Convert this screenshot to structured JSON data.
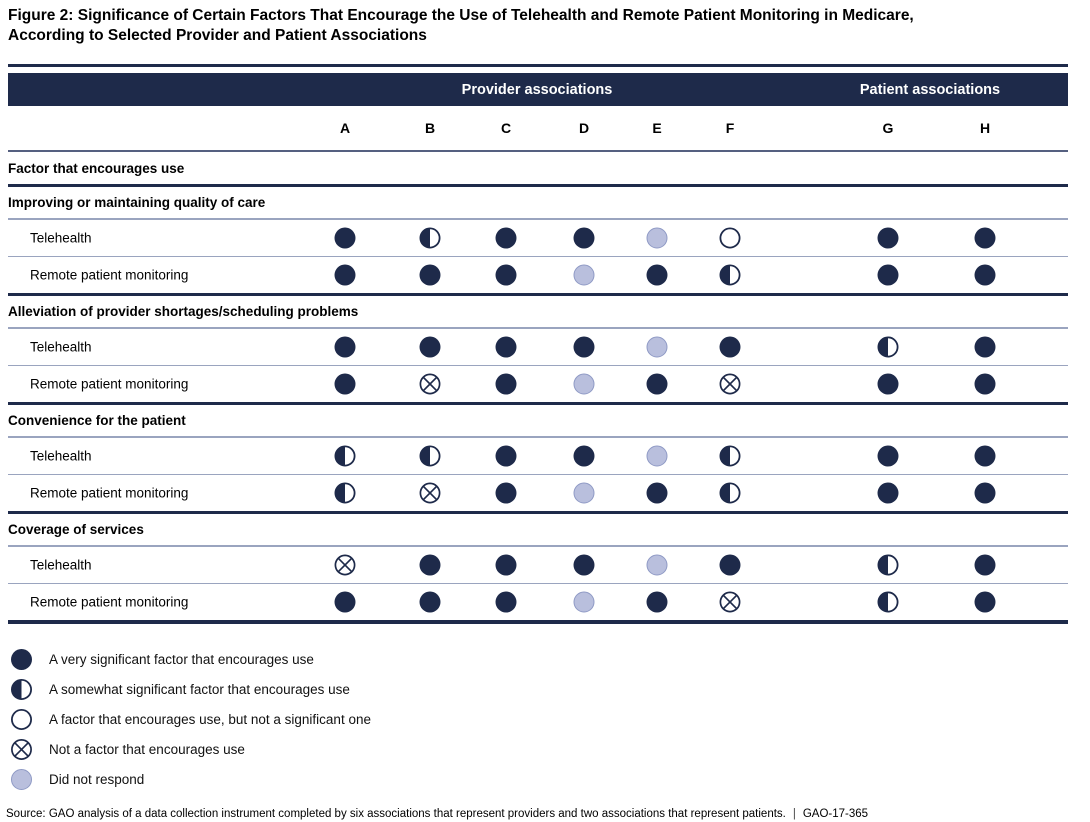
{
  "title": {
    "line1": "Figure 2: Significance of Certain Factors That Encourage the Use of Telehealth and Remote Patient Monitoring in Medicare,",
    "line2": "According to Selected Provider and Patient Associations"
  },
  "colors": {
    "navy": "#1e2a4a",
    "lavender": "#b9bfdd",
    "lavender_border": "#8f9ac5",
    "white": "#ffffff"
  },
  "chart_data": {
    "type": "table",
    "column_groups": [
      {
        "label": "Provider associations",
        "columns": [
          "A",
          "B",
          "C",
          "D",
          "E",
          "F"
        ]
      },
      {
        "label": "Patient associations",
        "columns": [
          "G",
          "H"
        ]
      }
    ],
    "columns": [
      "A",
      "B",
      "C",
      "D",
      "E",
      "F",
      "G",
      "H"
    ],
    "row_header": "Factor that encourages use",
    "value_key": {
      "V": {
        "name": "very-significant",
        "label": "A very significant factor that encourages use"
      },
      "S": {
        "name": "somewhat-significant",
        "label": "A somewhat significant factor that encourages use"
      },
      "E": {
        "name": "encourages-not-significant",
        "label": "A factor that encourages use, but not a significant one"
      },
      "X": {
        "name": "not-a-factor",
        "label": "Not a factor that encourages use"
      },
      "N": {
        "name": "did-not-respond",
        "label": "Did not respond"
      }
    },
    "sections": [
      {
        "label": "Improving or maintaining quality of care",
        "rows": [
          {
            "label": "Telehealth",
            "values": [
              "V",
              "S",
              "V",
              "V",
              "N",
              "E",
              "V",
              "V"
            ]
          },
          {
            "label": "Remote patient monitoring",
            "values": [
              "V",
              "V",
              "V",
              "N",
              "V",
              "S",
              "V",
              "V"
            ]
          }
        ]
      },
      {
        "label": "Alleviation of provider shortages/scheduling problems",
        "rows": [
          {
            "label": "Telehealth",
            "values": [
              "V",
              "V",
              "V",
              "V",
              "N",
              "V",
              "S",
              "V"
            ]
          },
          {
            "label": "Remote patient monitoring",
            "values": [
              "V",
              "X",
              "V",
              "N",
              "V",
              "X",
              "V",
              "V"
            ]
          }
        ]
      },
      {
        "label": "Convenience for the patient",
        "rows": [
          {
            "label": "Telehealth",
            "values": [
              "S",
              "S",
              "V",
              "V",
              "N",
              "S",
              "V",
              "V"
            ]
          },
          {
            "label": "Remote patient monitoring",
            "values": [
              "S",
              "X",
              "V",
              "N",
              "V",
              "S",
              "V",
              "V"
            ]
          }
        ]
      },
      {
        "label": "Coverage of services",
        "rows": [
          {
            "label": "Telehealth",
            "values": [
              "X",
              "V",
              "V",
              "V",
              "N",
              "V",
              "S",
              "V"
            ]
          },
          {
            "label": "Remote patient monitoring",
            "values": [
              "V",
              "V",
              "V",
              "N",
              "V",
              "X",
              "S",
              "V"
            ]
          }
        ]
      }
    ],
    "legend_order": [
      "V",
      "S",
      "E",
      "X",
      "N"
    ]
  },
  "source": {
    "text": "Source: GAO analysis of a data collection instrument completed by six associations that represent providers and two associations that represent patients.",
    "separator": "|",
    "ref": "GAO-17-365"
  }
}
